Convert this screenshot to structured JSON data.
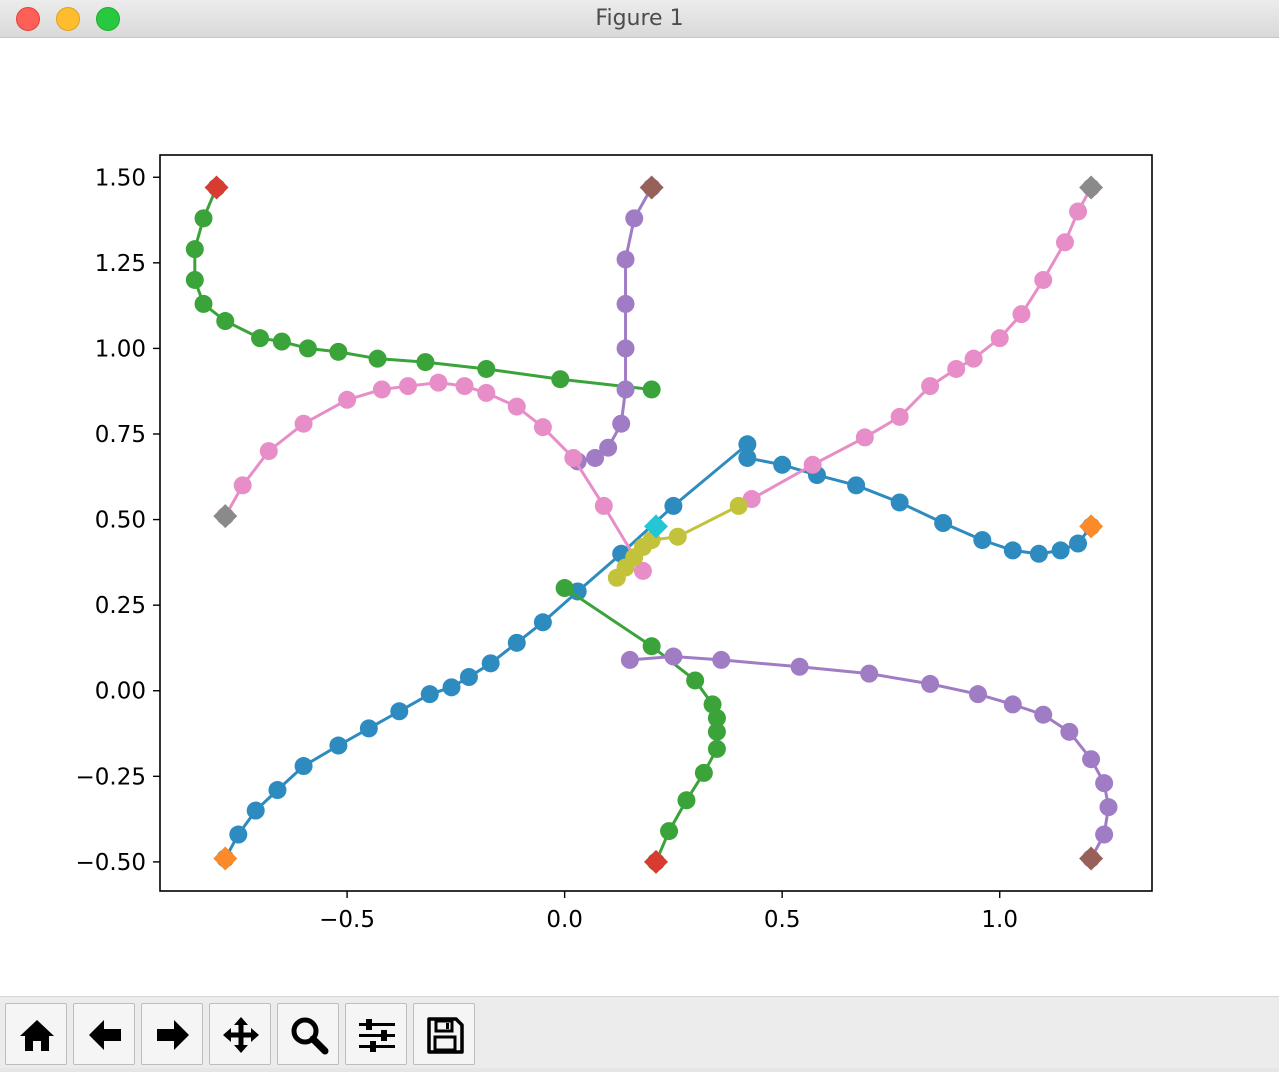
{
  "window": {
    "title": "Figure 1"
  },
  "toolbar": {
    "buttons": [
      {
        "name": "home-button",
        "icon": "home-icon"
      },
      {
        "name": "back-button",
        "icon": "arrow-left-icon"
      },
      {
        "name": "forward-button",
        "icon": "arrow-right-icon"
      },
      {
        "name": "pan-button",
        "icon": "move-icon"
      },
      {
        "name": "zoom-button",
        "icon": "magnifier-icon"
      },
      {
        "name": "configure-subplots-button",
        "icon": "sliders-icon"
      },
      {
        "name": "save-button",
        "icon": "floppy-disk-icon"
      }
    ]
  },
  "chart_data": {
    "type": "scatter",
    "title": "",
    "xlabel": "",
    "ylabel": "",
    "xlim": [
      -0.93,
      1.35
    ],
    "ylim": [
      -0.585,
      1.565
    ],
    "xticks": [
      -0.5,
      0.0,
      0.5,
      1.0
    ],
    "xtick_labels": [
      "−0.5",
      "0.0",
      "0.5",
      "1.0"
    ],
    "yticks": [
      -0.5,
      -0.25,
      0.0,
      0.25,
      0.5,
      0.75,
      1.0,
      1.25,
      1.5
    ],
    "ytick_labels": [
      "−0.50",
      "−0.25",
      "0.00",
      "0.25",
      "0.50",
      "0.75",
      "1.00",
      "1.25",
      "1.50"
    ],
    "grid": false,
    "legend": "none",
    "series": [
      {
        "color": "#2e8bc0",
        "points": [
          [
            -0.78,
            -0.49
          ],
          [
            -0.75,
            -0.42
          ],
          [
            -0.71,
            -0.35
          ],
          [
            -0.66,
            -0.29
          ],
          [
            -0.6,
            -0.22
          ],
          [
            -0.52,
            -0.16
          ],
          [
            -0.45,
            -0.11
          ],
          [
            -0.38,
            -0.06
          ],
          [
            -0.31,
            -0.01
          ],
          [
            -0.26,
            0.01
          ],
          [
            -0.22,
            0.04
          ],
          [
            -0.17,
            0.08
          ],
          [
            -0.11,
            0.14
          ],
          [
            -0.05,
            0.2
          ],
          [
            0.03,
            0.29
          ],
          [
            0.13,
            0.4
          ],
          [
            0.25,
            0.54
          ],
          [
            0.42,
            0.72
          ],
          [
            0.42,
            0.68
          ],
          [
            0.5,
            0.66
          ],
          [
            0.58,
            0.63
          ],
          [
            0.67,
            0.6
          ],
          [
            0.77,
            0.55
          ],
          [
            0.87,
            0.49
          ],
          [
            0.96,
            0.44
          ],
          [
            1.03,
            0.41
          ],
          [
            1.09,
            0.4
          ],
          [
            1.14,
            0.41
          ],
          [
            1.18,
            0.43
          ],
          [
            1.21,
            0.48
          ]
        ]
      },
      {
        "color": "#3aa33a",
        "points": [
          [
            0.21,
            -0.5
          ],
          [
            0.24,
            -0.41
          ],
          [
            0.28,
            -0.32
          ],
          [
            0.32,
            -0.24
          ],
          [
            0.35,
            -0.17
          ],
          [
            0.35,
            -0.12
          ],
          [
            0.35,
            -0.08
          ],
          [
            0.34,
            -0.04
          ],
          [
            0.3,
            0.03
          ],
          [
            0.2,
            0.13
          ],
          [
            0.0,
            0.3
          ]
        ]
      },
      {
        "color": "#3aa33a",
        "points": [
          [
            -0.8,
            1.47
          ],
          [
            -0.83,
            1.38
          ],
          [
            -0.85,
            1.29
          ],
          [
            -0.85,
            1.2
          ],
          [
            -0.83,
            1.13
          ],
          [
            -0.78,
            1.08
          ],
          [
            -0.7,
            1.03
          ],
          [
            -0.65,
            1.02
          ],
          [
            -0.59,
            1.0
          ],
          [
            -0.52,
            0.99
          ],
          [
            -0.43,
            0.97
          ],
          [
            -0.32,
            0.96
          ],
          [
            -0.18,
            0.94
          ],
          [
            -0.01,
            0.91
          ],
          [
            0.2,
            0.88
          ]
        ]
      },
      {
        "color": "#a07cc5",
        "points": [
          [
            1.21,
            -0.49
          ],
          [
            1.24,
            -0.42
          ],
          [
            1.25,
            -0.34
          ],
          [
            1.24,
            -0.27
          ],
          [
            1.21,
            -0.2
          ],
          [
            1.16,
            -0.12
          ],
          [
            1.1,
            -0.07
          ],
          [
            1.03,
            -0.04
          ],
          [
            0.95,
            -0.01
          ],
          [
            0.84,
            0.02
          ],
          [
            0.7,
            0.05
          ],
          [
            0.54,
            0.07
          ],
          [
            0.36,
            0.09
          ],
          [
            0.25,
            0.1
          ],
          [
            0.15,
            0.09
          ]
        ]
      },
      {
        "color": "#a07cc5",
        "points": [
          [
            0.2,
            1.47
          ],
          [
            0.16,
            1.38
          ],
          [
            0.14,
            1.26
          ],
          [
            0.14,
            1.13
          ],
          [
            0.14,
            1.0
          ],
          [
            0.14,
            0.88
          ],
          [
            0.13,
            0.78
          ],
          [
            0.1,
            0.71
          ],
          [
            0.07,
            0.68
          ],
          [
            0.03,
            0.67
          ]
        ]
      },
      {
        "color": "#e78ec9",
        "points": [
          [
            -0.78,
            0.51
          ],
          [
            -0.74,
            0.6
          ],
          [
            -0.68,
            0.7
          ],
          [
            -0.6,
            0.78
          ],
          [
            -0.5,
            0.85
          ],
          [
            -0.42,
            0.88
          ],
          [
            -0.36,
            0.89
          ],
          [
            -0.29,
            0.9
          ],
          [
            -0.23,
            0.89
          ],
          [
            -0.18,
            0.87
          ],
          [
            -0.11,
            0.83
          ],
          [
            -0.05,
            0.77
          ],
          [
            0.02,
            0.68
          ],
          [
            0.09,
            0.54
          ],
          [
            0.18,
            0.35
          ]
        ]
      },
      {
        "color": "#e78ec9",
        "points": [
          [
            1.21,
            1.47
          ],
          [
            1.18,
            1.4
          ],
          [
            1.15,
            1.31
          ],
          [
            1.1,
            1.2
          ],
          [
            1.05,
            1.1
          ],
          [
            1.0,
            1.03
          ],
          [
            0.94,
            0.97
          ],
          [
            0.9,
            0.94
          ],
          [
            0.84,
            0.89
          ],
          [
            0.77,
            0.8
          ],
          [
            0.69,
            0.74
          ],
          [
            0.57,
            0.66
          ],
          [
            0.43,
            0.56
          ]
        ]
      },
      {
        "color": "#c3c23b",
        "points": [
          [
            0.12,
            0.33
          ],
          [
            0.14,
            0.36
          ],
          [
            0.16,
            0.39
          ],
          [
            0.18,
            0.42
          ],
          [
            0.2,
            0.44
          ],
          [
            0.26,
            0.45
          ],
          [
            0.4,
            0.54
          ]
        ]
      }
    ],
    "markers": [
      {
        "shape": "diamond",
        "color": "#d83b32",
        "x": -0.8,
        "y": 1.47
      },
      {
        "shape": "diamond",
        "color": "#976159",
        "x": 0.2,
        "y": 1.47
      },
      {
        "shape": "diamond",
        "color": "#8a8a8a",
        "x": 1.21,
        "y": 1.47
      },
      {
        "shape": "diamond",
        "color": "#8a8a8a",
        "x": -0.78,
        "y": 0.51
      },
      {
        "shape": "diamond",
        "color": "#fb8a2a",
        "x": 1.21,
        "y": 0.48
      },
      {
        "shape": "diamond",
        "color": "#25c6d4",
        "x": 0.21,
        "y": 0.48
      },
      {
        "shape": "diamond",
        "color": "#fb8a2a",
        "x": -0.78,
        "y": -0.49
      },
      {
        "shape": "diamond",
        "color": "#d83b32",
        "x": 0.21,
        "y": -0.5
      },
      {
        "shape": "diamond",
        "color": "#976159",
        "x": 1.21,
        "y": -0.49
      }
    ]
  }
}
